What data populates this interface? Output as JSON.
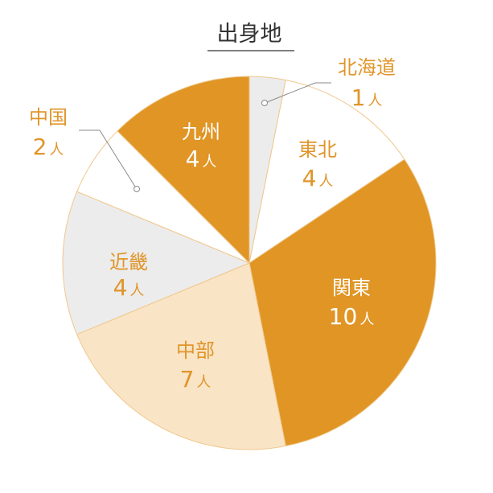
{
  "chart_data": {
    "type": "pie",
    "title": "出身地",
    "unit": "人",
    "categories": [
      "北海道",
      "東北",
      "関東",
      "中部",
      "近畿",
      "中国",
      "九州"
    ],
    "values": [
      1,
      4,
      10,
      7,
      4,
      2,
      4
    ],
    "colors": [
      "#ececec",
      "#ffffff",
      "#e09525",
      "#f9e4c6",
      "#ececec",
      "#ffffff",
      "#e09525"
    ]
  },
  "colors": {
    "accent": "#e09525",
    "slice_border": "#f0c88c",
    "title_text": "#333333"
  }
}
